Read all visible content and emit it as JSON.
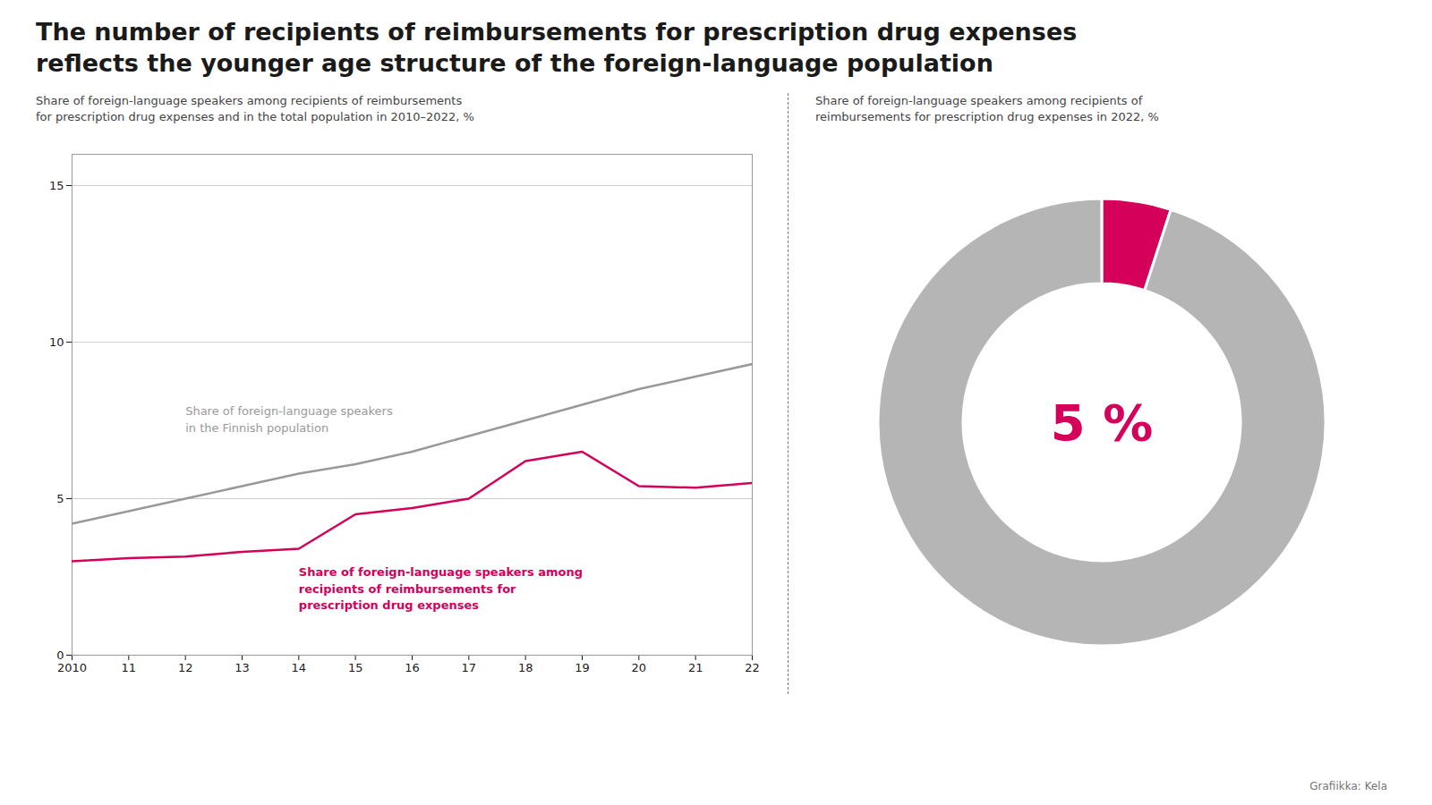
{
  "title": "The number of recipients of reimbursements for prescription drug expenses\nreflects the younger age structure of the foreign-language population",
  "caption": "Grafiikka: Kela",
  "chart_data": [
    {
      "type": "line",
      "subtitle": "Share of foreign-language speakers among recipients of reimbursements\nfor prescription drug expenses and in the total population in  2010–2022, %",
      "x": [
        2010,
        2011,
        2012,
        2013,
        2014,
        2015,
        2016,
        2017,
        2018,
        2019,
        2020,
        2021,
        2022
      ],
      "xlim": [
        2010,
        2022
      ],
      "xticks": [
        2010,
        {
          "value": 2011,
          "label": "11"
        },
        {
          "value": 2012,
          "label": "12"
        },
        {
          "value": 2013,
          "label": "13"
        },
        {
          "value": 2014,
          "label": "14"
        },
        {
          "value": 2015,
          "label": "15"
        },
        {
          "value": 2016,
          "label": "16"
        },
        {
          "value": 2017,
          "label": "17"
        },
        {
          "value": 2018,
          "label": "18"
        },
        {
          "value": 2019,
          "label": "19"
        },
        {
          "value": 2020,
          "label": "20"
        },
        {
          "value": 2021,
          "label": "21"
        },
        {
          "value": 2022,
          "label": "22"
        }
      ],
      "ylim": [
        0,
        16
      ],
      "yticks": [
        0,
        5,
        10,
        15
      ],
      "grid": true,
      "series": [
        {
          "name": "Share of foreign-language speakers\nin the Finnish population",
          "color": "#999999",
          "values": [
            4.2,
            4.6,
            5.0,
            5.4,
            5.8,
            6.1,
            6.5,
            7.0,
            7.5,
            8.0,
            8.5,
            8.9,
            9.3
          ]
        },
        {
          "name": "Share of foreign-language speakers among\nrecipients of reimbursements for\nprescription drug expenses",
          "color": "#d4005a",
          "values": [
            3.0,
            3.1,
            3.15,
            3.3,
            3.4,
            4.5,
            4.7,
            5.0,
            6.2,
            6.5,
            5.4,
            5.35,
            5.5
          ]
        }
      ]
    },
    {
      "type": "pie",
      "subtitle": "Share of foreign-language speakers among recipients of\nreimbursements for prescription drug expenses in 2022, %",
      "values": [
        5,
        95
      ],
      "colors": [
        "#d4005a",
        "#b5b5b5"
      ],
      "annotations": [
        "5 %"
      ]
    }
  ]
}
